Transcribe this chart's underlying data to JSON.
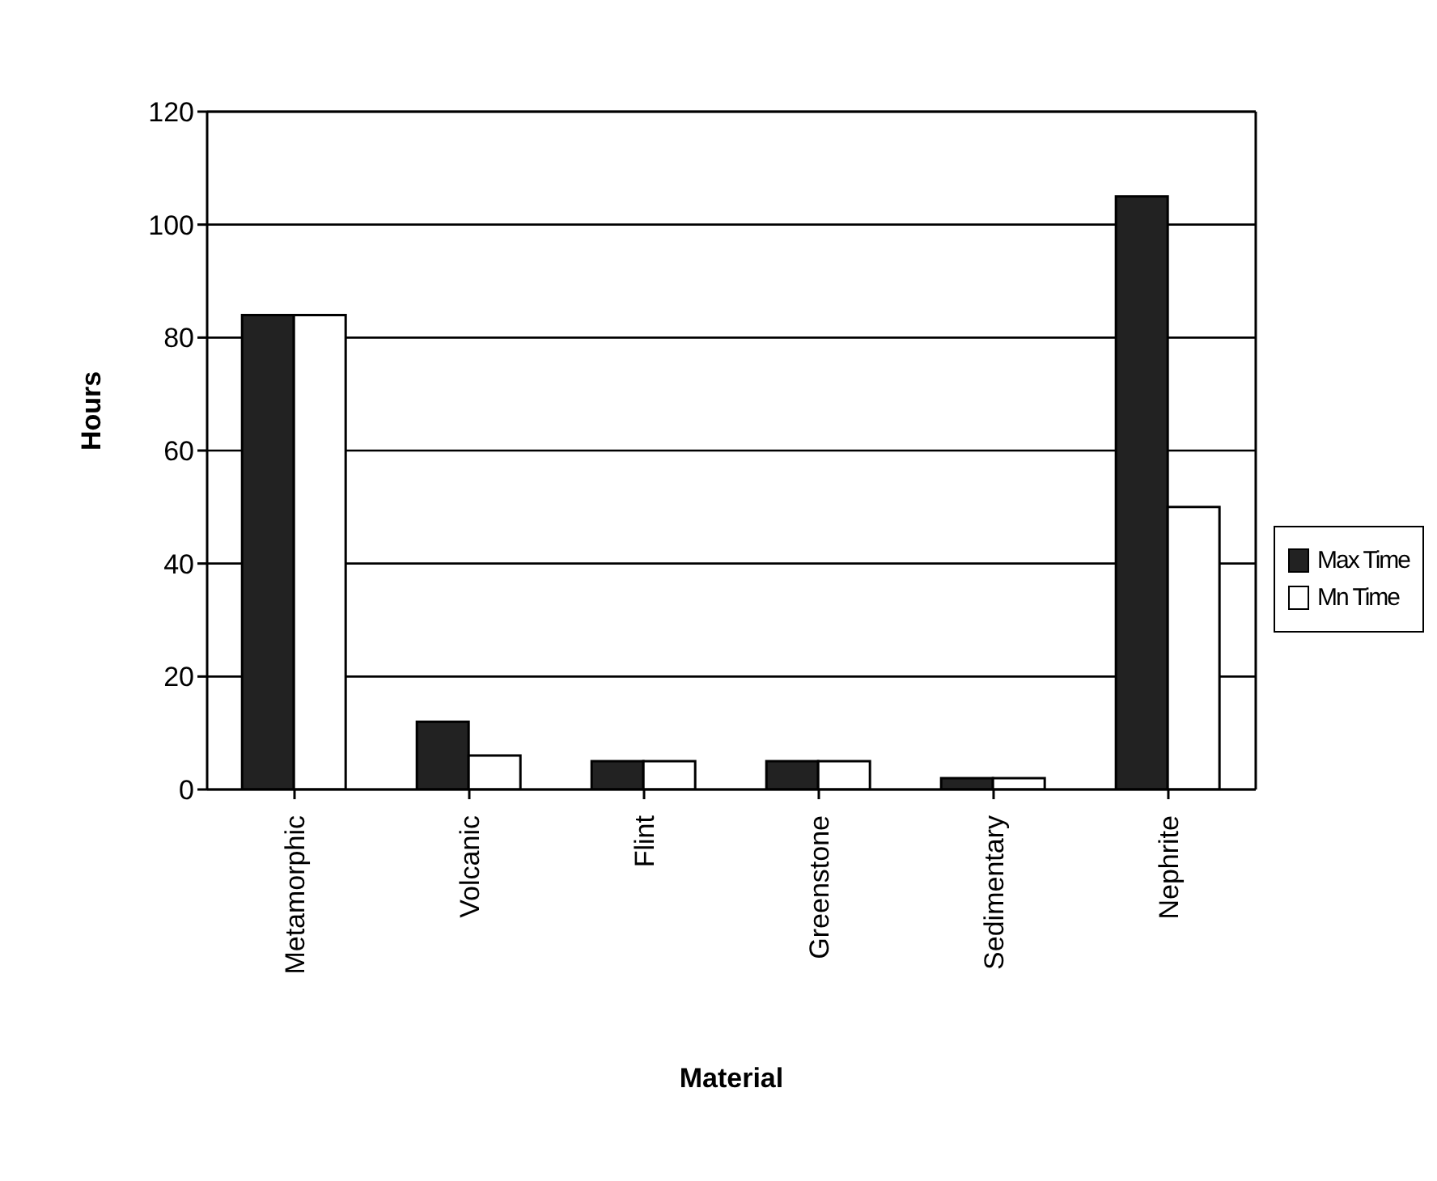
{
  "chart_data": {
    "type": "bar",
    "xlabel": "Material",
    "ylabel": "Hours",
    "categories": [
      "Metamorphic",
      "Volcanic",
      "Flint",
      "Greenstone",
      "Sedimentary",
      "Nephrite"
    ],
    "series": [
      {
        "name": "Max Time",
        "color": "#222222",
        "values": [
          84,
          12,
          5,
          5,
          2,
          105
        ]
      },
      {
        "name": "Mn Time",
        "color": "#ffffff",
        "values": [
          84,
          6,
          5,
          5,
          2,
          50
        ]
      }
    ],
    "ylim": [
      0,
      120
    ],
    "yticks": [
      0,
      20,
      40,
      60,
      80,
      100,
      120
    ],
    "grid": "y",
    "legend": "right"
  }
}
